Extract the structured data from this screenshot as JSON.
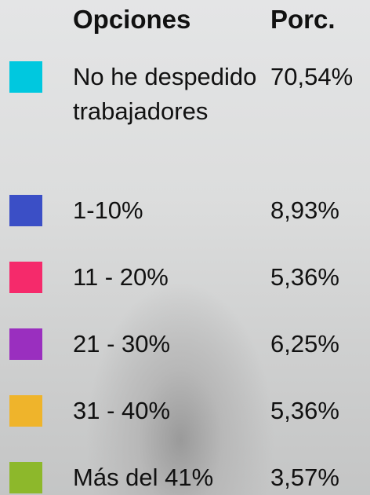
{
  "table": {
    "headers": [
      "Opciones",
      "Porc."
    ],
    "rows": [
      {
        "label": "No he despedido trabajadores",
        "value": "70,54%",
        "color": "#00c8df"
      },
      {
        "label": "1-10%",
        "value": "8,93%",
        "color": "#3b4fc6"
      },
      {
        "label": "11 - 20%",
        "value": "5,36%",
        "color": "#f52a6b"
      },
      {
        "label": "21 - 30%",
        "value": "6,25%",
        "color": "#9a2fbf"
      },
      {
        "label": "31 - 40%",
        "value": "5,36%",
        "color": "#efb42b"
      },
      {
        "label": "Más del 41%",
        "value": "3,57%",
        "color": "#8db82b"
      }
    ]
  }
}
